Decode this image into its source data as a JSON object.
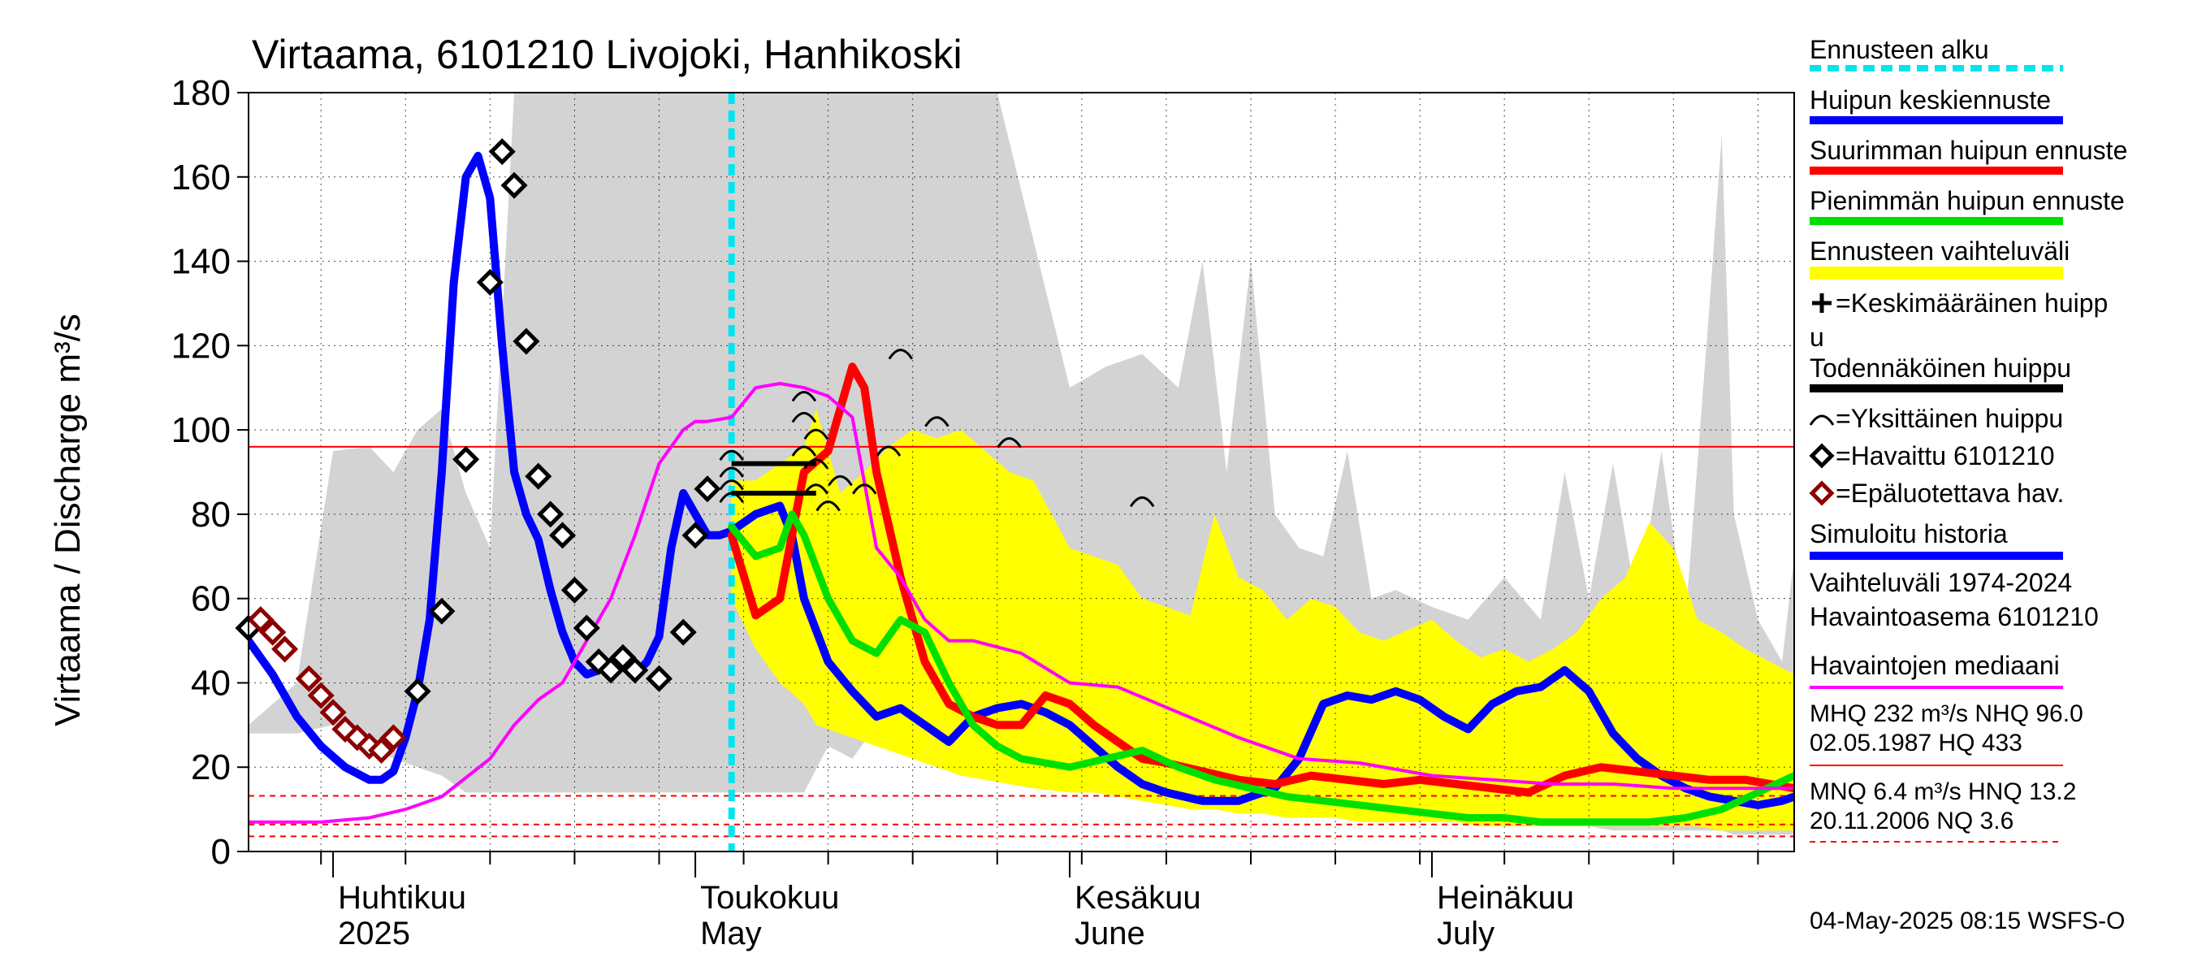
{
  "chart_data": {
    "type": "line",
    "title": "Virtaama, 6101210 Livojoki, Hanhikoski",
    "ylabel": "Virtaama / Discharge   m³/s",
    "xlabel": "",
    "ylim": [
      0,
      180
    ],
    "xlim": [
      "2025-03-25",
      "2025-07-31"
    ],
    "y_ticks": [
      0,
      20,
      40,
      60,
      80,
      100,
      120,
      140,
      160,
      180
    ],
    "grid": true,
    "legend_position": "right",
    "forecast_start": "2025-05-04",
    "month_labels": [
      {
        "fi": "Huhtikuu",
        "en": "2025",
        "date": "2025-04-01"
      },
      {
        "fi": "Toukokuu",
        "en": "May",
        "date": "2025-05-01"
      },
      {
        "fi": "Kesäkuu",
        "en": "June",
        "date": "2025-06-01"
      },
      {
        "fi": "Heinäkuu",
        "en": "July",
        "date": "2025-07-01"
      }
    ],
    "reference_lines": [
      {
        "name": "NHQ",
        "value": 96.0,
        "color": "#ff0000",
        "style": "solid"
      },
      {
        "name": "HNQ",
        "value": 13.2,
        "color": "#ff0000",
        "style": "dashed"
      },
      {
        "name": "MNQ",
        "value": 6.4,
        "color": "#ff0000",
        "style": "dashed"
      },
      {
        "name": "NQ",
        "value": 3.6,
        "color": "#ff0000",
        "style": "dashed"
      }
    ],
    "historical_range": {
      "name": "Vaihteluväli 1974-2024",
      "color": "#d3d3d3",
      "x": [
        "2025-03-25",
        "2025-03-29",
        "2025-04-01",
        "2025-04-04",
        "2025-04-06",
        "2025-04-08",
        "2025-04-10",
        "2025-04-12",
        "2025-04-14",
        "2025-04-16",
        "2025-04-18",
        "2025-05-10",
        "2025-05-12",
        "2025-05-14",
        "2025-05-16",
        "2025-05-20",
        "2025-05-26",
        "2025-06-01",
        "2025-06-04",
        "2025-06-07",
        "2025-06-10",
        "2025-06-12",
        "2025-06-14",
        "2025-06-16",
        "2025-06-18",
        "2025-06-20",
        "2025-06-22",
        "2025-06-24",
        "2025-06-26",
        "2025-06-28",
        "2025-07-01",
        "2025-07-04",
        "2025-07-07",
        "2025-07-10",
        "2025-07-12",
        "2025-07-14",
        "2025-07-16",
        "2025-07-18",
        "2025-07-20",
        "2025-07-22",
        "2025-07-24",
        "2025-07-25",
        "2025-07-26",
        "2025-07-28",
        "2025-07-30",
        "2025-07-31"
      ],
      "upper": [
        30,
        40,
        95,
        96,
        90,
        100,
        105,
        85,
        72,
        180,
        180,
        180,
        180,
        180,
        180,
        180,
        180,
        110,
        115,
        118,
        110,
        140,
        90,
        140,
        80,
        72,
        70,
        95,
        60,
        62,
        58,
        55,
        65,
        55,
        90,
        60,
        92,
        58,
        95,
        55,
        130,
        170,
        80,
        55,
        45,
        70
      ],
      "lower": [
        28,
        28,
        30,
        25,
        22,
        20,
        18,
        14,
        14,
        14,
        14,
        14,
        25,
        22,
        30,
        25,
        22,
        18,
        17,
        16,
        15,
        14,
        13,
        12,
        11,
        10,
        9,
        9,
        8,
        8,
        7,
        7,
        6,
        6,
        6,
        6,
        5,
        5,
        5,
        5,
        5,
        5,
        4,
        4,
        4,
        4
      ]
    },
    "forecast_range": {
      "name": "Ennusteen vaihteluväli",
      "color": "#ffff00",
      "x": [
        "2025-05-04",
        "2025-05-06",
        "2025-05-08",
        "2025-05-10",
        "2025-05-11",
        "2025-05-13",
        "2025-05-15",
        "2025-05-17",
        "2025-05-19",
        "2025-05-21",
        "2025-05-23",
        "2025-05-25",
        "2025-05-27",
        "2025-05-29",
        "2025-06-01",
        "2025-06-03",
        "2025-06-05",
        "2025-06-07",
        "2025-06-09",
        "2025-06-11",
        "2025-06-13",
        "2025-06-15",
        "2025-06-17",
        "2025-06-19",
        "2025-06-21",
        "2025-06-23",
        "2025-06-25",
        "2025-06-27",
        "2025-07-01",
        "2025-07-03",
        "2025-07-05",
        "2025-07-07",
        "2025-07-09",
        "2025-07-11",
        "2025-07-13",
        "2025-07-15",
        "2025-07-17",
        "2025-07-19",
        "2025-07-21",
        "2025-07-23",
        "2025-07-25",
        "2025-07-27",
        "2025-07-29",
        "2025-07-31"
      ],
      "upper": [
        88,
        88,
        92,
        96,
        105,
        85,
        90,
        96,
        100,
        98,
        100,
        95,
        90,
        88,
        72,
        70,
        68,
        60,
        58,
        56,
        80,
        65,
        62,
        55,
        60,
        58,
        52,
        50,
        55,
        50,
        46,
        48,
        45,
        48,
        52,
        60,
        65,
        78,
        72,
        55,
        52,
        48,
        45,
        42
      ],
      "lower": [
        60,
        48,
        40,
        35,
        30,
        28,
        26,
        24,
        22,
        20,
        18,
        17,
        16,
        15,
        14,
        14,
        13,
        12,
        11,
        10,
        10,
        9,
        9,
        8,
        8,
        8,
        7,
        7,
        7,
        7,
        6,
        6,
        6,
        6,
        6,
        6,
        6,
        6,
        6,
        6,
        5,
        5,
        5,
        5
      ]
    },
    "series": [
      {
        "name": "Simuloitu historia",
        "color": "#0000ff",
        "x": [
          "2025-03-25",
          "2025-03-27",
          "2025-03-29",
          "2025-03-31",
          "2025-04-02",
          "2025-04-04",
          "2025-04-05",
          "2025-04-06",
          "2025-04-07",
          "2025-04-08",
          "2025-04-09",
          "2025-04-10",
          "2025-04-11",
          "2025-04-12",
          "2025-04-13",
          "2025-04-14",
          "2025-04-15",
          "2025-04-16",
          "2025-04-17",
          "2025-04-18",
          "2025-04-19",
          "2025-04-20",
          "2025-04-21",
          "2025-04-22",
          "2025-04-23",
          "2025-04-24",
          "2025-04-25",
          "2025-04-26",
          "2025-04-27",
          "2025-04-28",
          "2025-04-29",
          "2025-04-30",
          "2025-05-01",
          "2025-05-02",
          "2025-05-03",
          "2025-05-04"
        ],
        "values": [
          50,
          42,
          32,
          25,
          20,
          17,
          17,
          19,
          27,
          38,
          55,
          90,
          135,
          160,
          165,
          155,
          120,
          90,
          80,
          74,
          62,
          52,
          45,
          42,
          43,
          45,
          44,
          42,
          45,
          51,
          72,
          85,
          80,
          75,
          75,
          76
        ]
      },
      {
        "name": "Huipun keskiennuste",
        "color": "#0000ff",
        "x": [
          "2025-05-04",
          "2025-05-06",
          "2025-05-08",
          "2025-05-09",
          "2025-05-10",
          "2025-05-12",
          "2025-05-14",
          "2025-05-16",
          "2025-05-18",
          "2025-05-20",
          "2025-05-22",
          "2025-05-24",
          "2025-05-26",
          "2025-05-28",
          "2025-05-30",
          "2025-06-01",
          "2025-06-03",
          "2025-06-05",
          "2025-06-07",
          "2025-06-09",
          "2025-06-12",
          "2025-06-15",
          "2025-06-18",
          "2025-06-20",
          "2025-06-22",
          "2025-06-24",
          "2025-06-26",
          "2025-06-28",
          "2025-06-30",
          "2025-07-02",
          "2025-07-04",
          "2025-07-06",
          "2025-07-08",
          "2025-07-10",
          "2025-07-12",
          "2025-07-14",
          "2025-07-16",
          "2025-07-18",
          "2025-07-20",
          "2025-07-22",
          "2025-07-24",
          "2025-07-26",
          "2025-07-28",
          "2025-07-30",
          "2025-07-31"
        ],
        "values": [
          76,
          80,
          82,
          75,
          60,
          45,
          38,
          32,
          34,
          30,
          26,
          32,
          34,
          35,
          33,
          30,
          25,
          20,
          16,
          14,
          12,
          12,
          15,
          22,
          35,
          37,
          36,
          38,
          36,
          32,
          29,
          35,
          38,
          39,
          43,
          38,
          28,
          22,
          18,
          15,
          13,
          12,
          11,
          12,
          13
        ]
      },
      {
        "name": "Suurimman huipun ennuste",
        "color": "#ff0000",
        "x": [
          "2025-05-04",
          "2025-05-06",
          "2025-05-08",
          "2025-05-09",
          "2025-05-10",
          "2025-05-12",
          "2025-05-14",
          "2025-05-15",
          "2025-05-16",
          "2025-05-18",
          "2025-05-20",
          "2025-05-22",
          "2025-05-24",
          "2025-05-26",
          "2025-05-28",
          "2025-05-30",
          "2025-06-01",
          "2025-06-03",
          "2025-06-05",
          "2025-06-07",
          "2025-06-09",
          "2025-06-12",
          "2025-06-15",
          "2025-06-18",
          "2025-06-21",
          "2025-06-24",
          "2025-06-27",
          "2025-06-30",
          "2025-07-03",
          "2025-07-06",
          "2025-07-09",
          "2025-07-12",
          "2025-07-15",
          "2025-07-18",
          "2025-07-21",
          "2025-07-24",
          "2025-07-27",
          "2025-07-31"
        ],
        "values": [
          75,
          56,
          60,
          75,
          90,
          95,
          115,
          110,
          90,
          65,
          45,
          35,
          32,
          30,
          30,
          37,
          35,
          30,
          26,
          22,
          21,
          19,
          17,
          16,
          18,
          17,
          16,
          17,
          16,
          15,
          14,
          18,
          20,
          19,
          18,
          17,
          17,
          15
        ]
      },
      {
        "name": "Pienimmän huipun ennuste",
        "color": "#00e000",
        "x": [
          "2025-05-04",
          "2025-05-06",
          "2025-05-08",
          "2025-05-09",
          "2025-05-10",
          "2025-05-12",
          "2025-05-14",
          "2025-05-16",
          "2025-05-18",
          "2025-05-20",
          "2025-05-22",
          "2025-05-24",
          "2025-05-26",
          "2025-05-28",
          "2025-05-30",
          "2025-06-01",
          "2025-06-04",
          "2025-06-07",
          "2025-06-10",
          "2025-06-13",
          "2025-06-16",
          "2025-06-19",
          "2025-06-22",
          "2025-06-25",
          "2025-06-28",
          "2025-07-01",
          "2025-07-04",
          "2025-07-07",
          "2025-07-10",
          "2025-07-13",
          "2025-07-16",
          "2025-07-19",
          "2025-07-22",
          "2025-07-25",
          "2025-07-28",
          "2025-07-31"
        ],
        "values": [
          77,
          70,
          72,
          80,
          75,
          60,
          50,
          47,
          55,
          52,
          40,
          30,
          25,
          22,
          21,
          20,
          22,
          24,
          20,
          17,
          15,
          13,
          12,
          11,
          10,
          9,
          8,
          8,
          7,
          7,
          7,
          7,
          8,
          10,
          14,
          18
        ]
      },
      {
        "name": "Havaintojen mediaani",
        "color": "#ff00ff",
        "x": [
          "2025-03-25",
          "2025-03-31",
          "2025-04-04",
          "2025-04-07",
          "2025-04-10",
          "2025-04-14",
          "2025-04-16",
          "2025-04-18",
          "2025-04-20",
          "2025-04-22",
          "2025-04-24",
          "2025-04-26",
          "2025-04-28",
          "2025-04-30",
          "2025-05-01",
          "2025-05-02",
          "2025-05-04",
          "2025-05-06",
          "2025-05-08",
          "2025-05-10",
          "2025-05-12",
          "2025-05-14",
          "2025-05-16",
          "2025-05-18",
          "2025-05-20",
          "2025-05-22",
          "2025-05-24",
          "2025-05-28",
          "2025-06-01",
          "2025-06-05",
          "2025-06-10",
          "2025-06-15",
          "2025-06-20",
          "2025-06-25",
          "2025-07-01",
          "2025-07-06",
          "2025-07-11",
          "2025-07-16",
          "2025-07-21",
          "2025-07-26",
          "2025-07-31"
        ],
        "values": [
          7,
          7,
          8,
          10,
          13,
          22,
          30,
          36,
          40,
          50,
          60,
          75,
          92,
          100,
          102,
          102,
          103,
          110,
          111,
          110,
          108,
          103,
          72,
          65,
          55,
          50,
          50,
          47,
          40,
          39,
          33,
          27,
          22,
          21,
          18,
          17,
          16,
          16,
          15,
          15,
          15
        ]
      }
    ],
    "observed": {
      "name": "Havaittu 6101210",
      "x": [
        "2025-03-25",
        "2025-04-08",
        "2025-04-10",
        "2025-04-12",
        "2025-04-14",
        "2025-04-15",
        "2025-04-16",
        "2025-04-17",
        "2025-04-18",
        "2025-04-19",
        "2025-04-20",
        "2025-04-21",
        "2025-04-22",
        "2025-04-23",
        "2025-04-24",
        "2025-04-25",
        "2025-04-26",
        "2025-04-28",
        "2025-04-30",
        "2025-05-01",
        "2025-05-02"
      ],
      "values": [
        53,
        38,
        57,
        93,
        135,
        166,
        158,
        121,
        89,
        80,
        75,
        62,
        53,
        45,
        43,
        46,
        43,
        41,
        52,
        75,
        86
      ]
    },
    "unreliable": {
      "name": "Epäluotettava hav.",
      "x": [
        "2025-03-26",
        "2025-03-27",
        "2025-03-28",
        "2025-03-30",
        "2025-03-31",
        "2025-04-01",
        "2025-04-02",
        "2025-04-03",
        "2025-04-04",
        "2025-04-05",
        "2025-04-06"
      ],
      "values": [
        55,
        52,
        48,
        41,
        37,
        33,
        29,
        27,
        25,
        24,
        27
      ]
    },
    "peak_symbols": {
      "name": "Yksittäinen huippu",
      "x": [
        "2025-05-04",
        "2025-05-04",
        "2025-05-04",
        "2025-05-04",
        "2025-05-10",
        "2025-05-10",
        "2025-05-10",
        "2025-05-11",
        "2025-05-11",
        "2025-05-11",
        "2025-05-12",
        "2025-05-13",
        "2025-05-15",
        "2025-05-17",
        "2025-05-18",
        "2025-05-21",
        "2025-05-27",
        "2025-06-07"
      ],
      "values": [
        94,
        90,
        87,
        84,
        108,
        103,
        95,
        92,
        99,
        86,
        82,
        88,
        86,
        95,
        118,
        102,
        97,
        83
      ]
    },
    "probable_peak": {
      "name": "Todennäköinen huippu",
      "x": [
        "2025-05-04",
        "2025-05-11"
      ],
      "values": [
        92,
        85
      ]
    }
  },
  "legend": {
    "items": [
      {
        "label": "Ennusteen alku",
        "color": "#00e5ee",
        "type": "dash"
      },
      {
        "label": "Huipun keskiennuste",
        "color": "#0000ff",
        "type": "line"
      },
      {
        "label": "Suurimman huipun ennuste",
        "color": "#ff0000",
        "type": "line"
      },
      {
        "label": "Pienimmän huipun ennuste",
        "color": "#00e000",
        "type": "line"
      },
      {
        "label": "Ennusteen vaihteluväli",
        "color": "#ffff00",
        "type": "band"
      },
      {
        "label": "=Keskimääräinen huipp",
        "label2": "u",
        "color": "#000000",
        "type": "plus"
      },
      {
        "label": "Todennäköinen huippu",
        "color": "#000000",
        "type": "line"
      },
      {
        "label": "=Yksittäinen huippu",
        "color": "#000000",
        "type": "arc"
      },
      {
        "label": "=Havaittu 6101210",
        "color": "#000000",
        "type": "diamond"
      },
      {
        "label": "=Epäluotettava hav.",
        "color": "#8b0000",
        "type": "diamond"
      },
      {
        "label": "Simuloitu historia",
        "color": "#0000ff",
        "type": "line"
      },
      {
        "label": "Vaihteluväli 1974-2024",
        "label2": " Havaintoasema 6101210",
        "color": "#d3d3d3",
        "type": "band"
      },
      {
        "label": "Havaintojen mediaani",
        "color": "#ff00ff",
        "type": "line"
      }
    ],
    "stats": {
      "line1": "MHQ  232 m³/s NHQ 96.0",
      "line2": "02.05.1987 HQ  433",
      "line3": "MNQ  6.4 m³/s HNQ 13.2",
      "line4": "20.11.2006 NQ  3.6"
    }
  },
  "footer": "04-May-2025 08:15 WSFS-O"
}
